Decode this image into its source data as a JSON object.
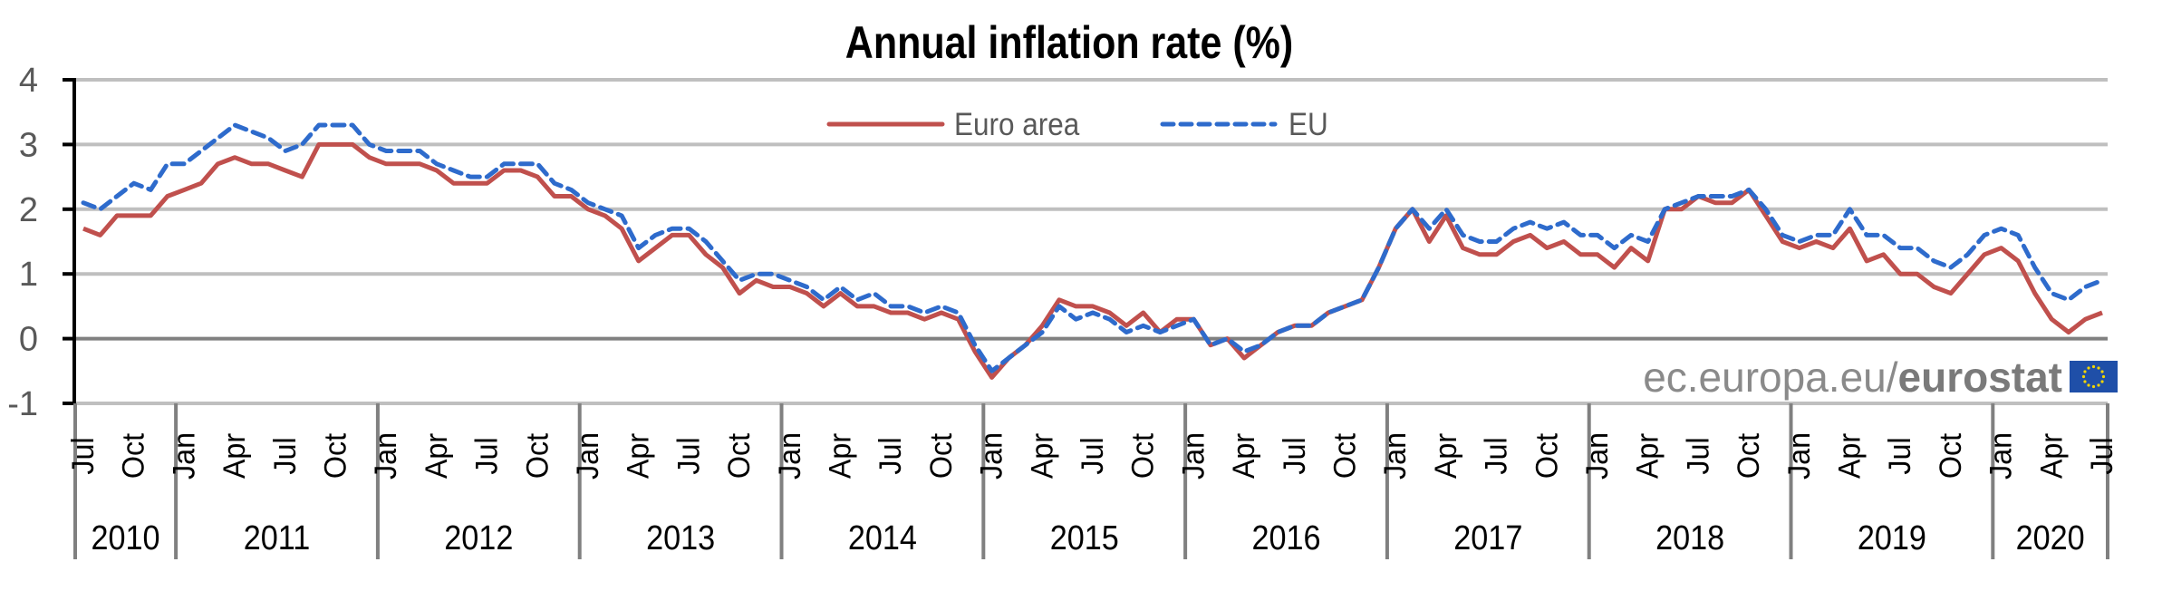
{
  "chart_data": {
    "type": "line",
    "title": "Annual inflation rate (%)",
    "xlabel": "",
    "ylabel": "",
    "ylim": [
      -1,
      4
    ],
    "yticks": [
      "4",
      "3",
      "2",
      "1",
      "0",
      "-1"
    ],
    "ytick_values": [
      4,
      3,
      2,
      1,
      0,
      -1
    ],
    "grid": true,
    "legend_position": "top-center",
    "x_start": "2010-07",
    "x_end": "2020-07",
    "month_tick_labels": [
      "Jan",
      "Apr",
      "Jul",
      "Oct"
    ],
    "years": [
      "2010",
      "2011",
      "2012",
      "2013",
      "2014",
      "2015",
      "2016",
      "2017",
      "2018",
      "2019",
      "2020"
    ],
    "series": [
      {
        "name": "Euro area",
        "color": "#C0504D",
        "style": "solid",
        "values": [
          1.7,
          1.6,
          1.9,
          1.9,
          1.9,
          2.2,
          2.3,
          2.4,
          2.7,
          2.8,
          2.7,
          2.7,
          2.6,
          2.5,
          3.0,
          3.0,
          3.0,
          2.8,
          2.7,
          2.7,
          2.7,
          2.6,
          2.4,
          2.4,
          2.4,
          2.6,
          2.6,
          2.5,
          2.2,
          2.2,
          2.0,
          1.9,
          1.7,
          1.2,
          1.4,
          1.6,
          1.6,
          1.3,
          1.1,
          0.7,
          0.9,
          0.8,
          0.8,
          0.7,
          0.5,
          0.7,
          0.5,
          0.5,
          0.4,
          0.4,
          0.3,
          0.4,
          0.3,
          -0.2,
          -0.6,
          -0.3,
          -0.1,
          0.2,
          0.6,
          0.5,
          0.5,
          0.4,
          0.2,
          0.4,
          0.1,
          0.3,
          0.3,
          -0.1,
          0.0,
          -0.3,
          -0.1,
          0.1,
          0.2,
          0.2,
          0.4,
          0.5,
          0.6,
          1.1,
          1.7,
          2.0,
          1.5,
          1.9,
          1.4,
          1.3,
          1.3,
          1.5,
          1.6,
          1.4,
          1.5,
          1.3,
          1.3,
          1.1,
          1.4,
          1.2,
          2.0,
          2.0,
          2.2,
          2.1,
          2.1,
          2.3,
          1.9,
          1.5,
          1.4,
          1.5,
          1.4,
          1.7,
          1.2,
          1.3,
          1.0,
          1.0,
          0.8,
          0.7,
          1.0,
          1.3,
          1.4,
          1.2,
          0.7,
          0.3,
          0.1,
          0.3,
          0.4
        ]
      },
      {
        "name": "EU",
        "color": "#2E6BCC",
        "style": "dashed",
        "values": [
          2.1,
          2.0,
          2.2,
          2.4,
          2.3,
          2.7,
          2.7,
          2.9,
          3.1,
          3.3,
          3.2,
          3.1,
          2.9,
          3.0,
          3.3,
          3.3,
          3.3,
          3.0,
          2.9,
          2.9,
          2.9,
          2.7,
          2.6,
          2.5,
          2.5,
          2.7,
          2.7,
          2.7,
          2.4,
          2.3,
          2.1,
          2.0,
          1.9,
          1.4,
          1.6,
          1.7,
          1.7,
          1.5,
          1.2,
          0.9,
          1.0,
          1.0,
          0.9,
          0.8,
          0.6,
          0.8,
          0.6,
          0.7,
          0.5,
          0.5,
          0.4,
          0.5,
          0.4,
          -0.1,
          -0.5,
          -0.3,
          -0.1,
          0.1,
          0.5,
          0.3,
          0.4,
          0.3,
          0.1,
          0.2,
          0.1,
          0.2,
          0.3,
          -0.1,
          0.0,
          -0.2,
          -0.1,
          0.1,
          0.2,
          0.2,
          0.4,
          0.5,
          0.6,
          1.1,
          1.7,
          2.0,
          1.7,
          2.0,
          1.6,
          1.5,
          1.5,
          1.7,
          1.8,
          1.7,
          1.8,
          1.6,
          1.6,
          1.4,
          1.6,
          1.5,
          2.0,
          2.1,
          2.2,
          2.2,
          2.2,
          2.3,
          2.0,
          1.6,
          1.5,
          1.6,
          1.6,
          2.0,
          1.6,
          1.6,
          1.4,
          1.4,
          1.2,
          1.1,
          1.3,
          1.6,
          1.7,
          1.6,
          1.1,
          0.7,
          0.6,
          0.8,
          0.9
        ]
      }
    ]
  },
  "watermark": {
    "prefix": "ec.europa.eu/",
    "brand": "eurostat",
    "flag_icon": "eu-flag-icon",
    "flag_color": "#1F4FA8",
    "star_color": "#F2D500"
  }
}
